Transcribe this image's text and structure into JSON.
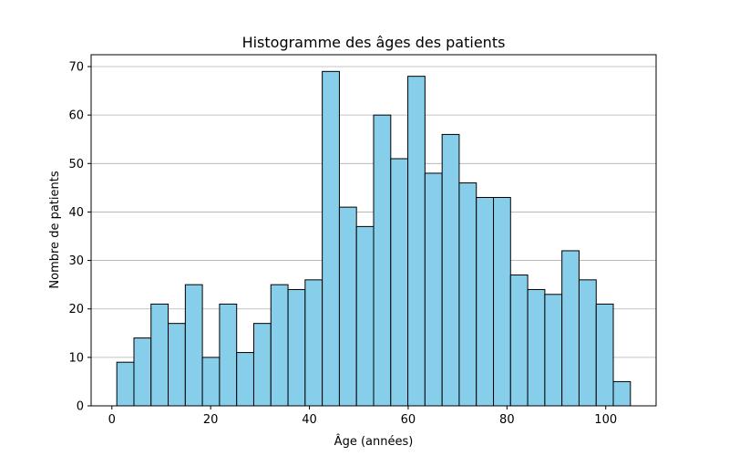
{
  "chart_data": {
    "type": "bar",
    "title": "Histogramme des âges des patients",
    "xlabel": "Âge (années)",
    "ylabel": "Nombre de patients",
    "bin_edges": [
      1.0,
      4.47,
      7.93,
      11.4,
      14.87,
      18.33,
      21.8,
      25.27,
      28.73,
      32.2,
      35.67,
      39.13,
      42.6,
      46.07,
      49.53,
      53.0,
      56.47,
      59.93,
      63.4,
      66.87,
      70.33,
      73.8,
      77.27,
      80.73,
      84.2,
      87.67,
      91.13,
      94.6,
      98.07,
      101.53,
      105.0
    ],
    "values": [
      9,
      14,
      21,
      17,
      25,
      10,
      21,
      11,
      17,
      25,
      24,
      26,
      69,
      41,
      37,
      60,
      51,
      68,
      48,
      56,
      46,
      43,
      43,
      27,
      24,
      23,
      32,
      26,
      21,
      5
    ],
    "xlim": [
      -4.2,
      110.2
    ],
    "ylim": [
      0,
      72.45
    ],
    "xticks": [
      0,
      20,
      40,
      60,
      80,
      100
    ],
    "yticks": [
      0,
      10,
      20,
      30,
      40,
      50,
      60,
      70
    ],
    "grid": "y",
    "colors": {
      "bar_fill": "#87ceeb",
      "bar_edge": "#000000",
      "grid": "#b0b0b0"
    }
  }
}
